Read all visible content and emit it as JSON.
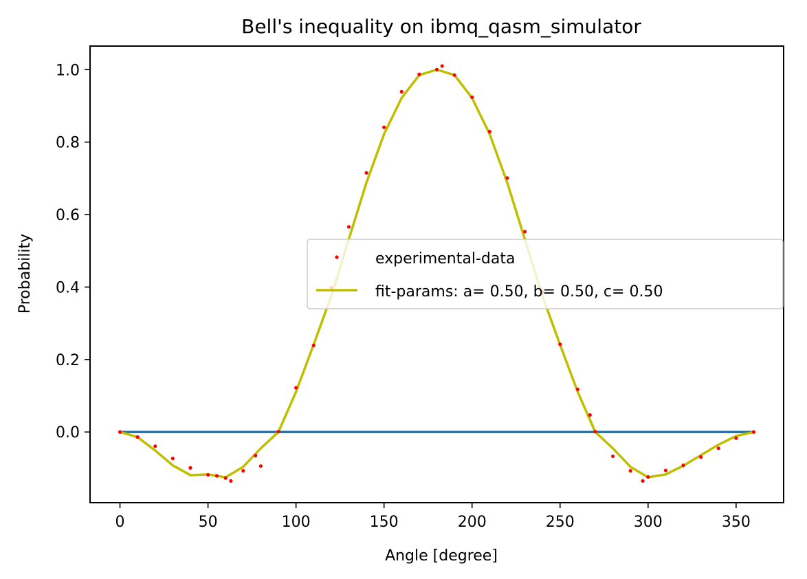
{
  "chart_data": {
    "type": "line",
    "title": "Bell's inequality on ibmq_qasm_simulator",
    "xlabel": "Angle [degree]",
    "ylabel": "Probability",
    "xlim": [
      -17,
      377
    ],
    "ylim": [
      -0.195,
      1.065
    ],
    "xticks": [
      0,
      50,
      100,
      150,
      200,
      250,
      300,
      350
    ],
    "yticks": [
      0.0,
      0.2,
      0.4,
      0.6,
      0.8,
      1.0
    ],
    "xtick_labels": [
      "0",
      "50",
      "100",
      "150",
      "200",
      "250",
      "300",
      "350"
    ],
    "ytick_labels": [
      "0.0",
      "0.2",
      "0.4",
      "0.6",
      "0.8",
      "1.0"
    ],
    "grid": false,
    "legend_position": "center-right",
    "series": [
      {
        "name": "experimental-data",
        "kind": "scatter",
        "color": "#ff0000",
        "x": [
          0,
          10,
          20,
          30,
          40,
          50,
          55,
          60,
          63,
          70,
          77,
          80,
          90,
          100,
          110,
          120,
          130,
          140,
          150,
          160,
          170,
          180,
          183,
          190,
          200,
          210,
          220,
          230,
          240,
          250,
          260,
          267,
          270,
          280,
          290,
          297,
          300,
          310,
          320,
          330,
          340,
          350,
          360
        ],
        "y": [
          0.0,
          -0.014,
          -0.039,
          -0.073,
          -0.099,
          -0.118,
          -0.121,
          -0.127,
          -0.135,
          -0.107,
          -0.065,
          -0.094,
          0.001,
          0.122,
          0.239,
          0.398,
          0.566,
          0.715,
          0.841,
          0.939,
          0.987,
          1.0,
          1.01,
          0.985,
          0.924,
          0.829,
          0.701,
          0.553,
          0.386,
          0.242,
          0.118,
          0.047,
          0.001,
          -0.067,
          -0.107,
          -0.135,
          -0.124,
          -0.106,
          -0.092,
          -0.069,
          -0.045,
          -0.017,
          0.0
        ]
      },
      {
        "name": "fit-params: a= 0.50, b= 0.50, c= 0.50",
        "kind": "line",
        "color": "#bfbf00",
        "x": [
          0,
          10,
          20,
          30,
          40,
          50,
          60,
          70,
          80,
          90,
          100,
          110,
          120,
          130,
          140,
          150,
          160,
          170,
          180,
          190,
          200,
          210,
          220,
          230,
          240,
          250,
          260,
          270,
          280,
          290,
          300,
          310,
          320,
          330,
          340,
          350,
          360
        ],
        "y": [
          0.0,
          -0.014,
          -0.051,
          -0.092,
          -0.119,
          -0.117,
          -0.125,
          -0.096,
          -0.045,
          0.0,
          0.111,
          0.241,
          0.375,
          0.532,
          0.688,
          0.822,
          0.922,
          0.985,
          1.0,
          0.985,
          0.922,
          0.822,
          0.688,
          0.532,
          0.375,
          0.241,
          0.111,
          0.0,
          -0.045,
          -0.096,
          -0.125,
          -0.117,
          -0.093,
          -0.064,
          -0.035,
          -0.011,
          0.0
        ]
      },
      {
        "name": "",
        "kind": "line",
        "color": "#1f77b4",
        "x": [
          0,
          360
        ],
        "y": [
          0.0,
          0.0
        ]
      }
    ]
  }
}
